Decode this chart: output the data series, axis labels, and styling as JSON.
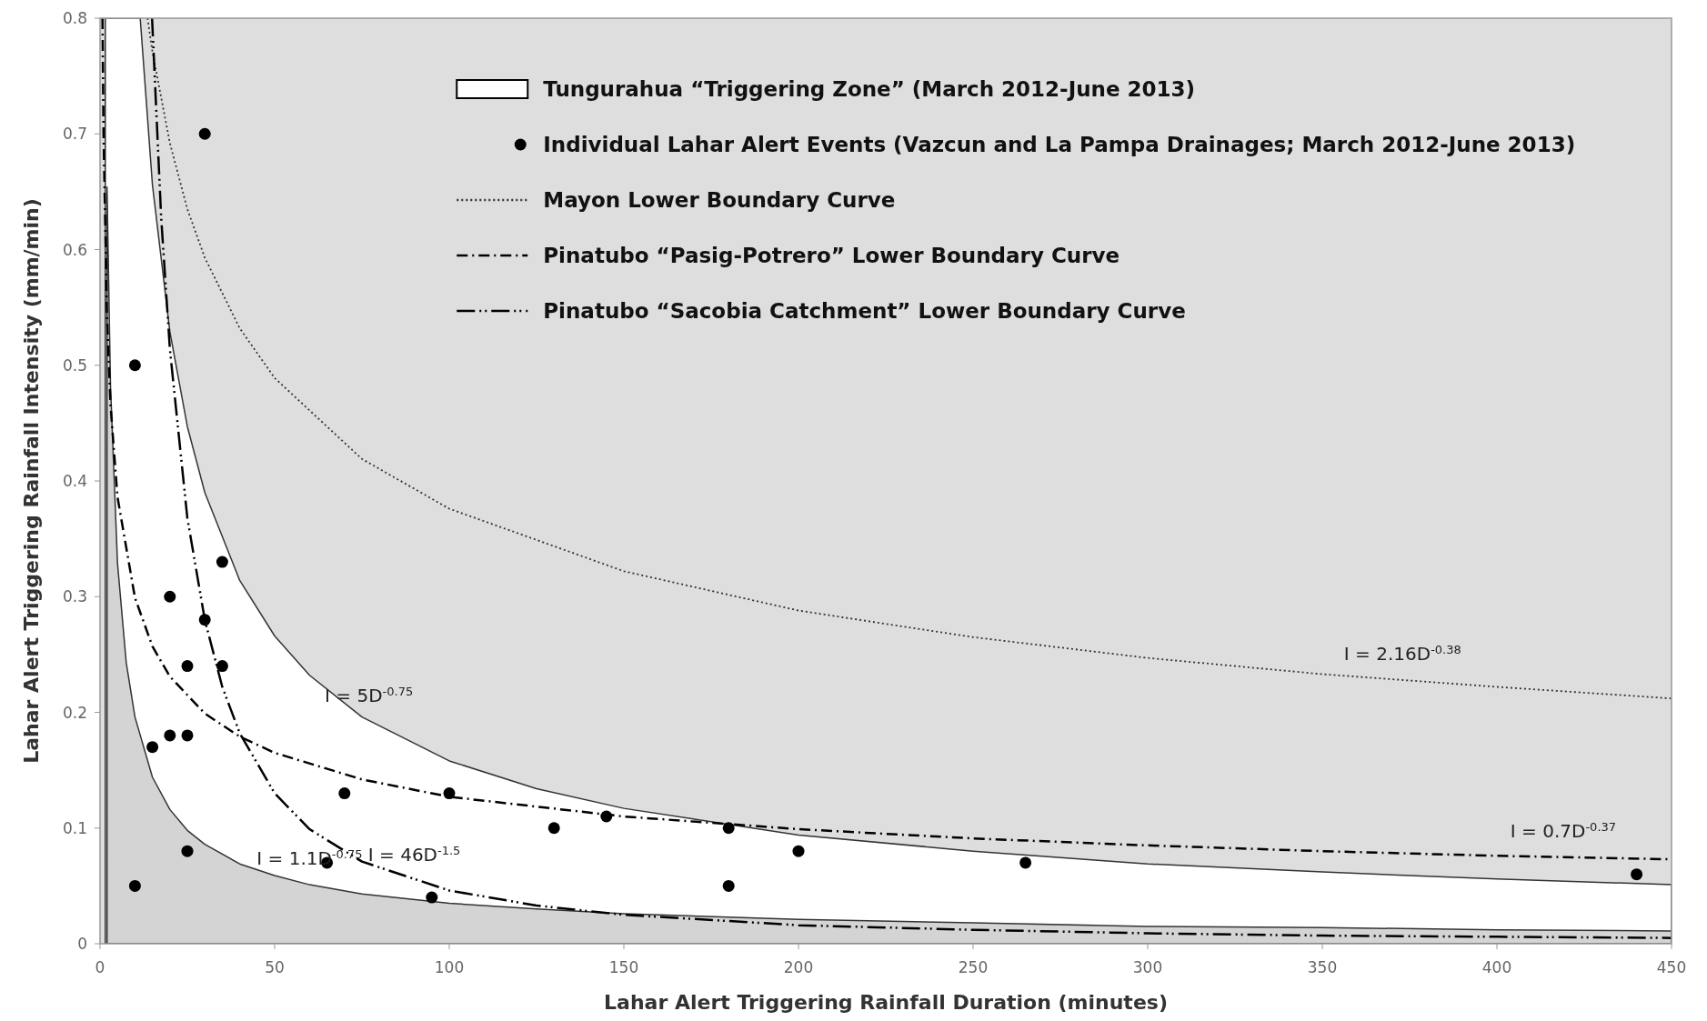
{
  "chart_data": {
    "type": "line",
    "xlabel": "Lahar Alert Triggering Rainfall Duration (minutes)",
    "ylabel": "Lahar Alert Triggering Rainfall Intensity (mm/min)",
    "xlim": [
      0,
      450
    ],
    "xticks": [
      0,
      50,
      100,
      150,
      200,
      250,
      300,
      350,
      400,
      450
    ],
    "ylim": [
      0,
      0.8
    ],
    "yticks": [
      0,
      0.1,
      0.2,
      0.3,
      0.4,
      0.5,
      0.6,
      0.7,
      0.8
    ],
    "legend": "top",
    "grid": false,
    "series": [
      {
        "name": "Tungurahua “Triggering Zone” (March 2012-June 2013)",
        "type": "area",
        "color": "#ffffff",
        "x": [
          1.5,
          11.5,
          15,
          20,
          25,
          30,
          40,
          50,
          60,
          75,
          100,
          125,
          150,
          200,
          250,
          300,
          350,
          400,
          450
        ],
        "values": [
          0.8,
          0.8,
          0.656,
          0.529,
          0.447,
          0.39,
          0.314,
          0.266,
          0.232,
          0.196,
          0.158,
          0.134,
          0.117,
          0.094,
          0.08,
          0.069,
          0.062,
          0.056,
          0.051
        ]
      },
      {
        "type": "area",
        "color": "#d4d4d4",
        "x": [
          2,
          3,
          5,
          7.5,
          10,
          15,
          20,
          25,
          30,
          40,
          50,
          60,
          75,
          100,
          125,
          150,
          200,
          250,
          300,
          350,
          400,
          450
        ],
        "values": [
          0.654,
          0.482,
          0.329,
          0.243,
          0.196,
          0.144,
          0.116,
          0.098,
          0.086,
          0.069,
          0.059,
          0.051,
          0.043,
          0.035,
          0.03,
          0.026,
          0.021,
          0.018,
          0.015,
          0.014,
          0.012,
          0.011
        ]
      },
      {
        "name": "Individual Lahar Alert Events (Vazcun and La Pampa Drainages; March 2012-June 2013)",
        "type": "scatter",
        "color": "#000000",
        "marker": "circle",
        "x": [
          10,
          30,
          10,
          15,
          20,
          20,
          25,
          25,
          25,
          30,
          35,
          35,
          65,
          70,
          95,
          100,
          130,
          145,
          180,
          180,
          200,
          265,
          440
        ],
        "values": [
          0.5,
          0.7,
          0.05,
          0.17,
          0.18,
          0.3,
          0.24,
          0.18,
          0.08,
          0.28,
          0.33,
          0.24,
          0.07,
          0.13,
          0.04,
          0.13,
          0.1,
          0.11,
          0.1,
          0.05,
          0.08,
          0.07,
          0.06
        ]
      },
      {
        "name": "Mayon Lower Boundary Curve",
        "color": "#333333",
        "line_style": "dotted",
        "x": [
          13.6,
          15,
          20,
          25,
          30,
          40,
          50,
          75,
          100,
          150,
          200,
          250,
          300,
          350,
          400,
          450
        ],
        "values": [
          0.8,
          0.771,
          0.692,
          0.635,
          0.593,
          0.532,
          0.489,
          0.419,
          0.376,
          0.322,
          0.288,
          0.265,
          0.247,
          0.233,
          0.222,
          0.212
        ]
      },
      {
        "name": "Pinatubo “Pasig-Potrero” Lower Boundary Curve",
        "color": "#000000",
        "line_style": "dash-dot",
        "x": [
          0.7,
          1,
          2,
          3,
          5,
          10,
          15,
          20,
          30,
          40,
          50,
          75,
          100,
          150,
          200,
          250,
          300,
          350,
          400,
          450
        ],
        "values": [
          0.8,
          0.7,
          0.542,
          0.466,
          0.386,
          0.299,
          0.257,
          0.231,
          0.199,
          0.179,
          0.165,
          0.142,
          0.127,
          0.11,
          0.099,
          0.091,
          0.085,
          0.08,
          0.076,
          0.073
        ]
      },
      {
        "name": "Pinatubo “Sacobia Catchment” Lower Boundary Curve",
        "color": "#000000",
        "line_style": "dash-dot-dot",
        "x": [
          14.9,
          17.5,
          20,
          25,
          30,
          35,
          40,
          50,
          60,
          75,
          100,
          125,
          150,
          200,
          250,
          300,
          350,
          400,
          450
        ],
        "values": [
          0.8,
          0.628,
          0.514,
          0.368,
          0.28,
          0.222,
          0.182,
          0.13,
          0.099,
          0.071,
          0.046,
          0.033,
          0.025,
          0.016,
          0.012,
          0.009,
          0.007,
          0.006,
          0.005
        ]
      }
    ],
    "annotations": [
      {
        "text": "I = 5D$^{-0.75}$",
        "x": 77,
        "y": 0.192
      },
      {
        "text": "I = 1.1D$^{-0.75}$",
        "x": 60,
        "y": 0.051
      },
      {
        "text": "I = 46D$^{-1.5}$",
        "x": 90,
        "y": 0.054
      },
      {
        "text": "I = 2.16D$^{-0.38}$",
        "x": 373,
        "y": 0.228
      },
      {
        "text": "I = 0.7D$^{-0.37}$",
        "x": 419,
        "y": 0.075
      }
    ]
  }
}
